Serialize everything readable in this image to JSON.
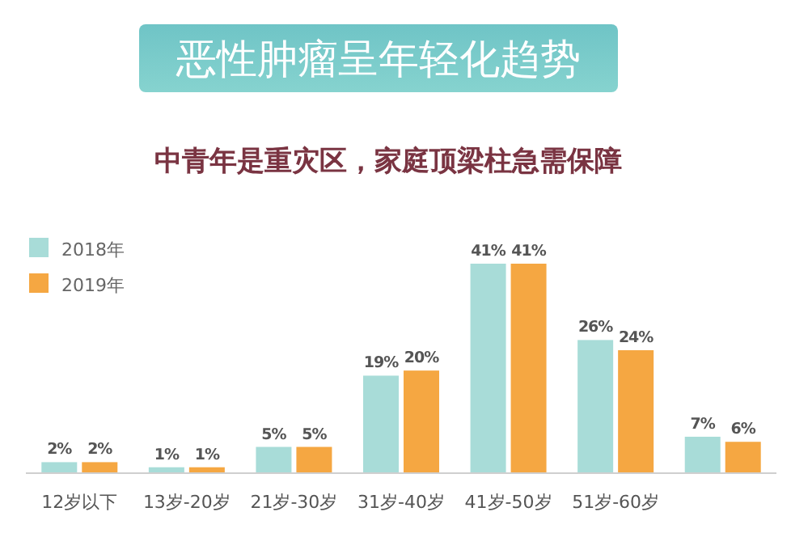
{
  "chart_data": {
    "type": "bar",
    "title": "恶性肿瘤呈年轻化趋势",
    "subtitle": "中青年是重灾区，家庭顶梁柱急需保障",
    "categories": [
      "12岁以下",
      "13岁-20岁",
      "21岁-30岁",
      "31岁-40岁",
      "41岁-50岁",
      "51岁-60岁",
      null
    ],
    "series": [
      {
        "name": "2018年",
        "color": "#a8dcd8",
        "values": [
          2,
          1,
          5,
          19,
          41,
          26,
          7
        ],
        "value_labels": [
          "2%",
          "1%",
          "5%",
          "19%",
          "41%",
          "26%",
          "7%"
        ]
      },
      {
        "name": "2019年",
        "color": "#f5a742",
        "values": [
          2,
          1,
          5,
          20,
          41,
          24,
          6
        ],
        "value_labels": [
          "2%",
          "1%",
          "5%",
          "20%",
          "41%",
          "24%",
          "6%"
        ]
      }
    ],
    "legend": "top left",
    "grid": false
  }
}
